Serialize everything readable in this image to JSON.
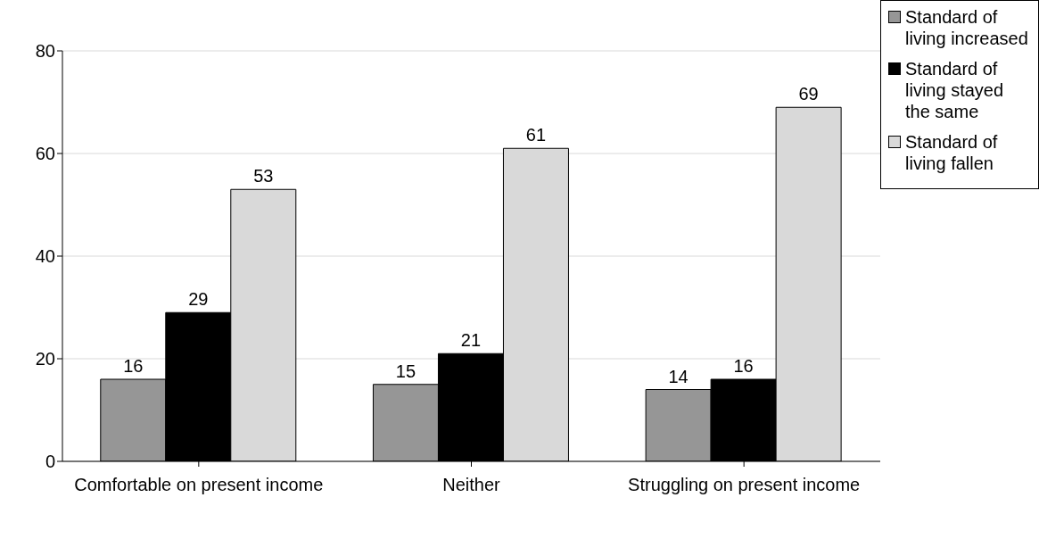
{
  "chart_data": {
    "type": "bar",
    "categories": [
      "Comfortable on present income",
      "Neither",
      "Struggling on present income"
    ],
    "series": [
      {
        "name": "Standard of living increased",
        "color": "#969696",
        "values": [
          16,
          15,
          14
        ]
      },
      {
        "name": "Standard of living stayed the same",
        "color": "#000000",
        "values": [
          29,
          21,
          16
        ]
      },
      {
        "name": "Standard of living fallen",
        "color": "#d9d9d9",
        "values": [
          53,
          61,
          69
        ]
      }
    ],
    "ylim": [
      0,
      80
    ],
    "yticks": [
      0,
      20,
      40,
      60,
      80
    ],
    "grid": "y",
    "legend": "top right",
    "data_labels": true
  }
}
